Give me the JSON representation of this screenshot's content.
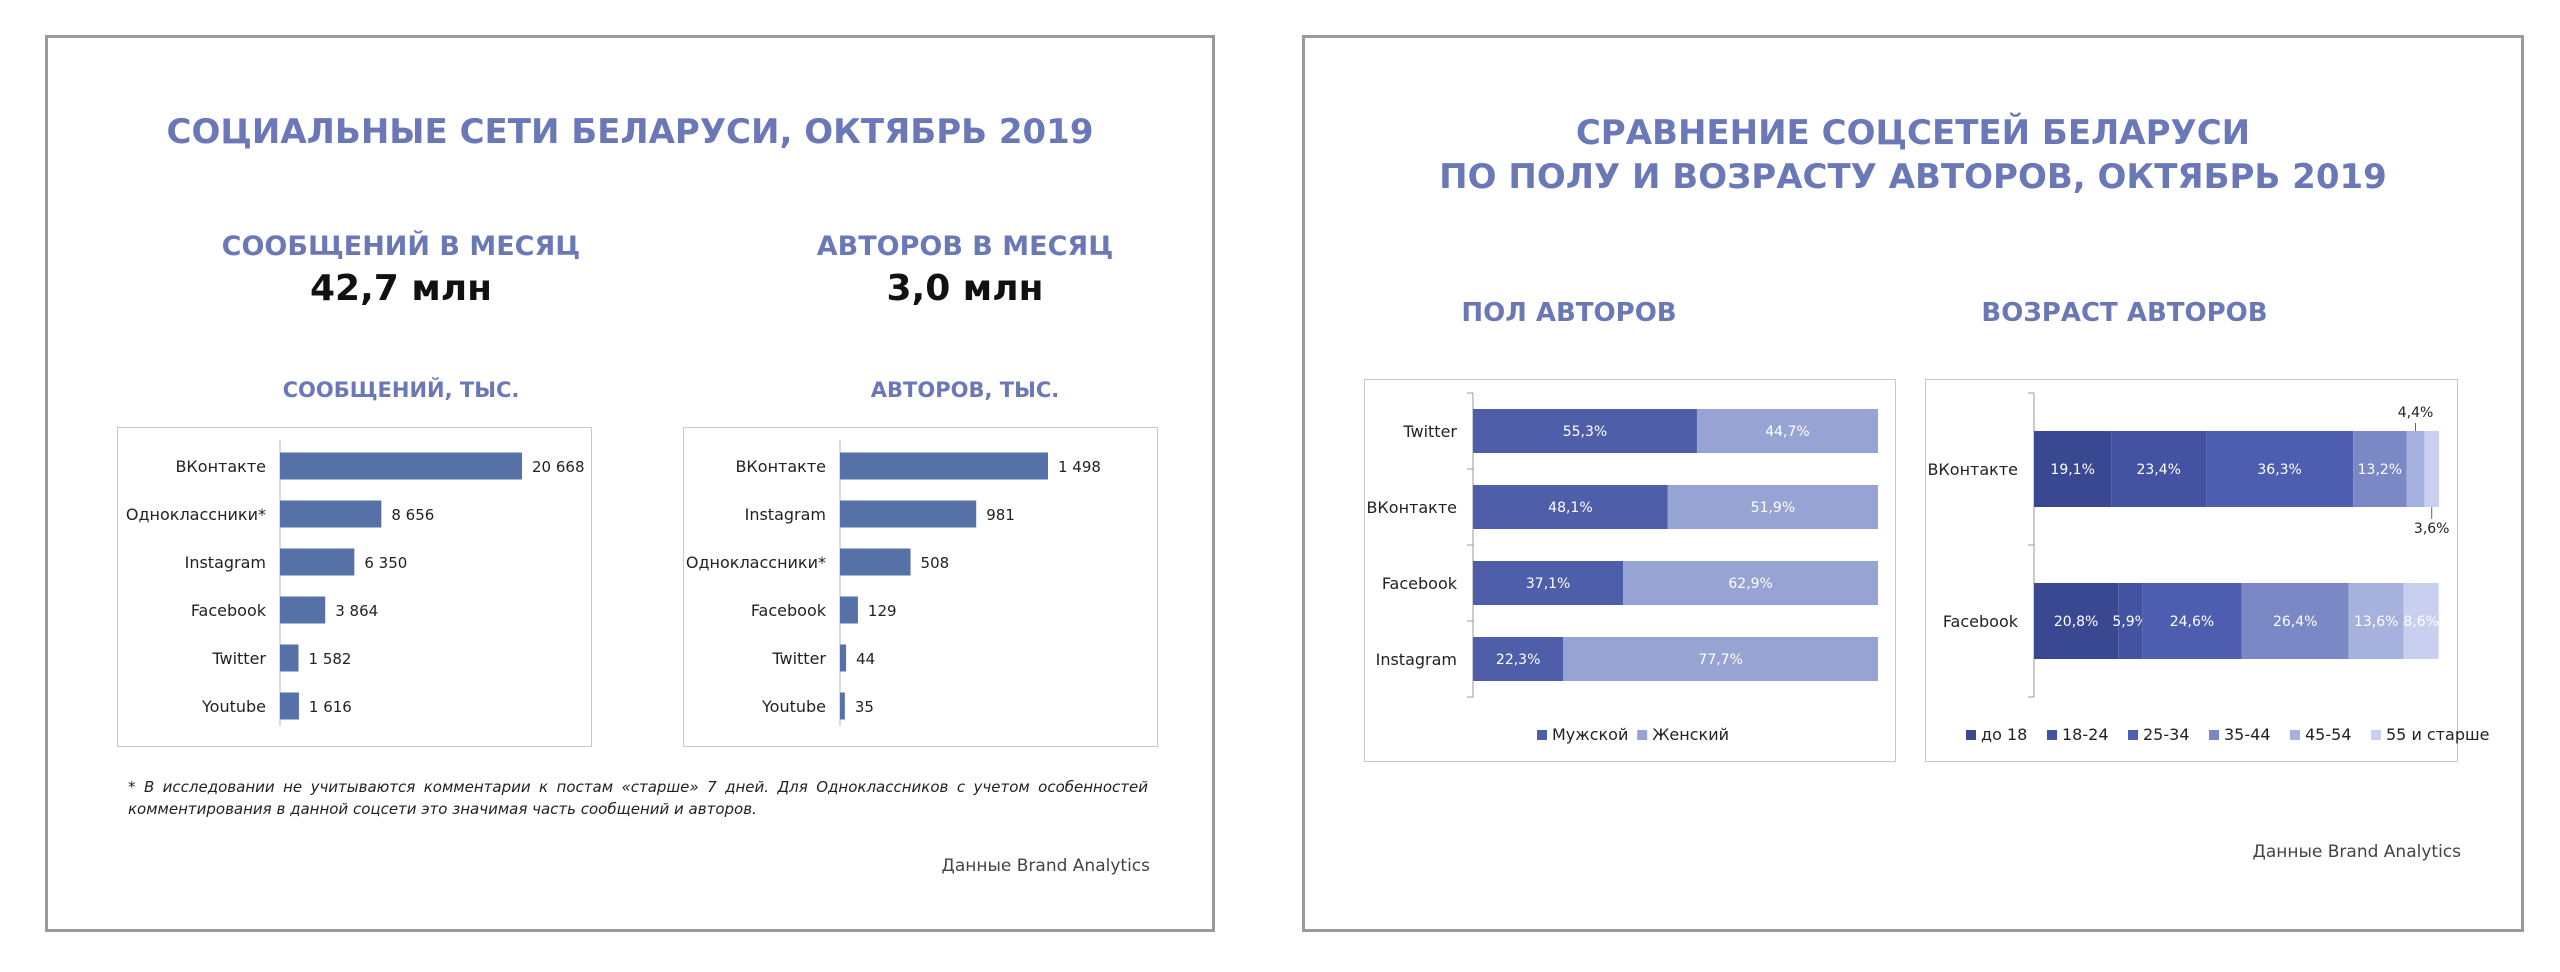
{
  "slide1": {
    "title": "СОЦИАЛЬНЫЕ СЕТИ БЕЛАРУСИ, ОКТЯБРЬ 2019",
    "kpi_messages": {
      "label": "СООБЩЕНИЙ В МЕСЯЦ",
      "value": "42,7 млн"
    },
    "kpi_authors": {
      "label": "АВТОРОВ В МЕСЯЦ",
      "value": "3,0 млн"
    },
    "footnote": "* В исследовании не учитываются комментарии к постам «старше» 7 дней. Для Одноклассников с учетом особенностей комментирования в данной соцсети это значимая часть сообщений и авторов.",
    "source": "Данные Brand Analytics"
  },
  "slide2": {
    "title_line1": "СРАВНЕНИЕ СОЦСЕТЕЙ БЕЛАРУСИ",
    "title_line2": "ПО ПОЛУ И ВОЗРАСТУ АВТОРОВ, ОКТЯБРЬ 2019",
    "gender_heading": "ПОЛ АВТОРОВ",
    "age_heading": "ВОЗРАСТ АВТОРОВ",
    "source": "Данные Brand Analytics"
  },
  "colors": {
    "title": "#6b78b8",
    "bar": "#5670a8",
    "male": "#4e5ea8",
    "female": "#97a3d3",
    "age": [
      "#3a4892",
      "#4452a2",
      "#4d5db0",
      "#7a88c6",
      "#a7b1de",
      "#c9cfee"
    ]
  },
  "chart_data": [
    {
      "id": "messages",
      "type": "bar",
      "orientation": "horizontal",
      "title": "СООБЩЕНИЙ, ТЫС.",
      "categories": [
        "ВКонтакте",
        "Одноклассники*",
        "Instagram",
        "Facebook",
        "Twitter",
        "Youtube"
      ],
      "values": [
        20668,
        8656,
        6350,
        3864,
        1582,
        1616
      ],
      "value_labels": [
        "20 668",
        "8 656",
        "6 350",
        "3 864",
        "1 582",
        "1 616"
      ]
    },
    {
      "id": "authors",
      "type": "bar",
      "orientation": "horizontal",
      "title": "АВТОРОВ, ТЫС.",
      "categories": [
        "ВКонтакте",
        "Instagram",
        "Одноклассники*",
        "Facebook",
        "Twitter",
        "Youtube"
      ],
      "values": [
        1498,
        981,
        508,
        129,
        44,
        35
      ],
      "value_labels": [
        "1 498",
        "981",
        "508",
        "129",
        "44",
        "35"
      ]
    },
    {
      "id": "gender",
      "type": "bar",
      "stacked": "percent",
      "orientation": "horizontal",
      "categories": [
        "Twitter",
        "ВКонтакте",
        "Facebook",
        "Instagram"
      ],
      "series": [
        {
          "name": "Мужской",
          "values": [
            55.3,
            48.1,
            37.1,
            22.3
          ],
          "labels": [
            "55,3%",
            "48,1%",
            "37,1%",
            "22,3%"
          ]
        },
        {
          "name": "Женский",
          "values": [
            44.7,
            51.9,
            62.9,
            77.7
          ],
          "labels": [
            "44,7%",
            "51,9%",
            "62,9%",
            "77,7%"
          ]
        }
      ],
      "legend": "bottom"
    },
    {
      "id": "age",
      "type": "bar",
      "stacked": "percent",
      "orientation": "horizontal",
      "categories": [
        "ВКонтакте",
        "Facebook"
      ],
      "series": [
        {
          "name": "до 18",
          "values": [
            19.1,
            20.8
          ],
          "labels": [
            "19,1%",
            "20,8%"
          ]
        },
        {
          "name": "18-24",
          "values": [
            23.4,
            5.9
          ],
          "labels": [
            "23,4%",
            "5,9%"
          ]
        },
        {
          "name": "25-34",
          "values": [
            36.3,
            24.6
          ],
          "labels": [
            "36,3%",
            "24,6%"
          ]
        },
        {
          "name": "35-44",
          "values": [
            13.2,
            26.4
          ],
          "labels": [
            "13,2%",
            "26,4%"
          ]
        },
        {
          "name": "45-54",
          "values": [
            4.4,
            13.6
          ],
          "labels": [
            "4,4%",
            "13,6%"
          ]
        },
        {
          "name": "55 и старше",
          "values": [
            3.6,
            8.6
          ],
          "labels": [
            "3,6%",
            "8,6%"
          ]
        }
      ],
      "legend": "bottom"
    }
  ]
}
